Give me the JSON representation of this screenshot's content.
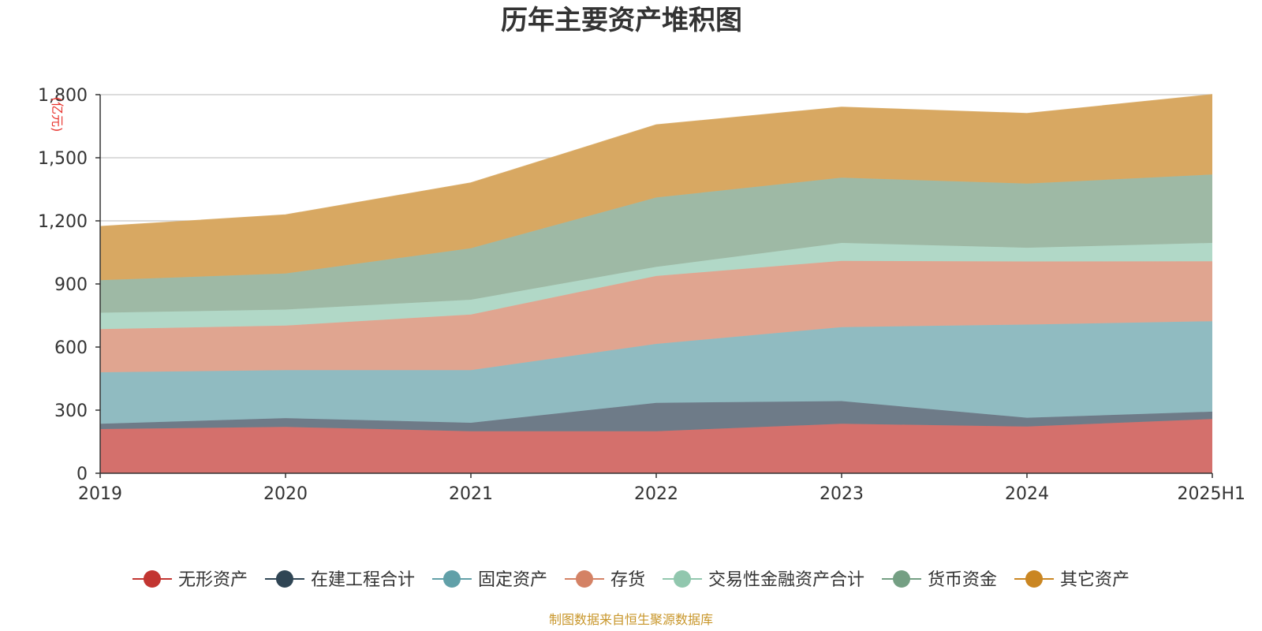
{
  "chart_data": {
    "type": "area",
    "stacked": true,
    "title": "历年主要资产堆积图",
    "ylabel": "(亿元)",
    "source": "制图数据来自恒生聚源数据库",
    "ylim": [
      0,
      1800
    ],
    "yticks": [
      0,
      300,
      600,
      900,
      1200,
      1500,
      1800
    ],
    "ytick_labels": [
      "0",
      "300",
      "600",
      "900",
      "1,200",
      "1,500",
      "1,800"
    ],
    "categories": [
      "2019",
      "2020",
      "2021",
      "2022",
      "2023",
      "2024",
      "2025H1"
    ],
    "legend_position": "bottom",
    "grid": true,
    "series": [
      {
        "name": "无形资产",
        "color": "#d4706c",
        "marker_color": "#c23531",
        "values": [
          210,
          220,
          200,
          200,
          235,
          222,
          258
        ]
      },
      {
        "name": "在建工程合计",
        "color": "#6e7b88",
        "marker_color": "#2f4554",
        "values": [
          25,
          42,
          40,
          135,
          108,
          42,
          35
        ]
      },
      {
        "name": "固定资产",
        "color": "#90bbc1",
        "marker_color": "#61a0a8",
        "values": [
          245,
          228,
          250,
          280,
          352,
          443,
          430
        ]
      },
      {
        "name": "存货",
        "color": "#e0a590",
        "marker_color": "#d48265",
        "values": [
          205,
          212,
          265,
          323,
          315,
          300,
          285
        ]
      },
      {
        "name": "交易性金融资产合计",
        "color": "#b1d8c7",
        "marker_color": "#91c7ae",
        "values": [
          78,
          76,
          70,
          43,
          85,
          65,
          87
        ]
      },
      {
        "name": "货币资金",
        "color": "#9eb9a5",
        "marker_color": "#749f83",
        "values": [
          155,
          172,
          245,
          330,
          310,
          305,
          325
        ]
      },
      {
        "name": "其它资产",
        "color": "#d8a862",
        "marker_color": "#ca8622",
        "values": [
          255,
          278,
          310,
          345,
          335,
          333,
          380
        ]
      }
    ]
  }
}
